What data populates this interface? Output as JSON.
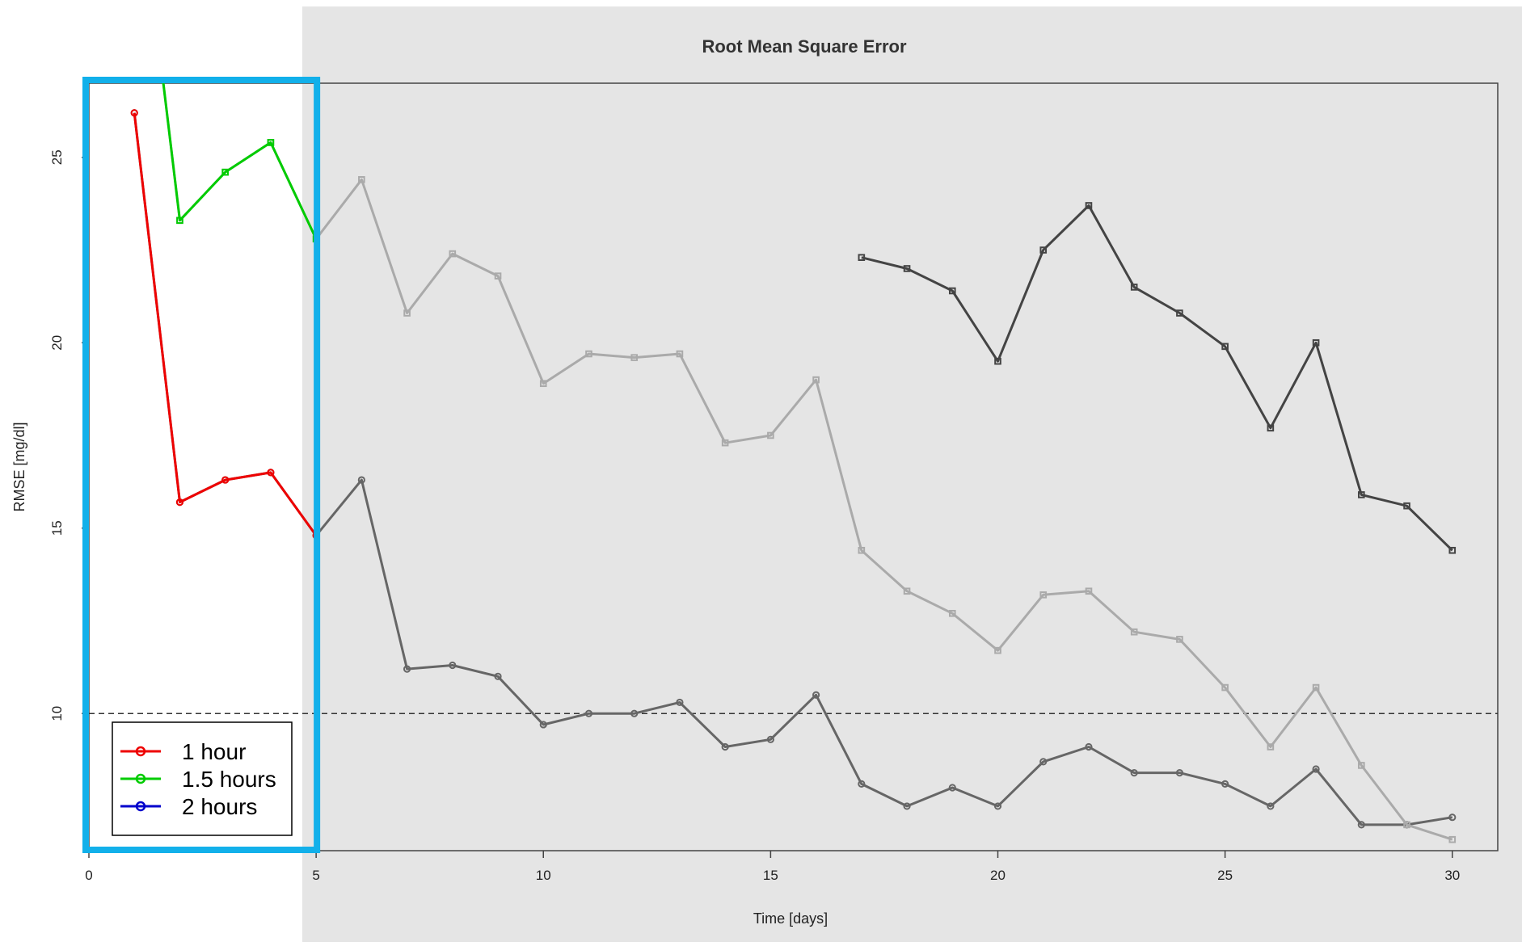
{
  "chart_data": {
    "type": "line",
    "title": "Root Mean Square Error",
    "xlabel": "Time [days]",
    "ylabel": "RMSE [mg/dl]",
    "xlim": [
      0,
      31
    ],
    "ylim": [
      6.3,
      27
    ],
    "xticks": [
      0,
      5,
      10,
      15,
      20,
      25,
      30
    ],
    "yticks": [
      10,
      15,
      20,
      25
    ],
    "reference_line": {
      "y": 10,
      "style": "dashed"
    },
    "series": [
      {
        "name": "1 hour",
        "color": "#666666",
        "highlight_color": "#ee0000",
        "marker": "circle",
        "x": [
          1,
          2,
          3,
          4,
          5,
          6,
          7,
          8,
          9,
          10,
          11,
          12,
          13,
          14,
          15,
          16,
          17,
          18,
          19,
          20,
          21,
          22,
          23,
          24,
          25,
          26,
          27,
          28,
          29,
          30
        ],
        "y": [
          26.2,
          15.7,
          16.3,
          16.5,
          14.8,
          16.3,
          11.2,
          11.3,
          11.0,
          9.7,
          10.0,
          10.0,
          10.3,
          9.1,
          9.3,
          10.5,
          8.1,
          7.5,
          8.0,
          7.5,
          8.7,
          9.1,
          8.4,
          8.4,
          8.1,
          7.5,
          8.5,
          7.0,
          7.0,
          7.2
        ]
      },
      {
        "name": "1.5 hours",
        "color": "#aaaaaa",
        "highlight_color": "#00cc00",
        "marker": "square",
        "x": [
          1,
          2,
          3,
          4,
          5,
          6,
          7,
          8,
          9,
          10,
          11,
          12,
          13,
          14,
          15,
          16,
          17,
          18,
          19,
          20,
          21,
          22,
          23,
          24,
          25,
          26,
          27,
          28,
          29,
          30
        ],
        "y": [
          33.5,
          23.3,
          24.6,
          25.4,
          22.8,
          24.4,
          20.8,
          22.4,
          21.8,
          18.9,
          19.7,
          19.6,
          19.7,
          17.3,
          17.5,
          19.0,
          14.4,
          13.3,
          12.7,
          11.7,
          13.2,
          13.3,
          12.2,
          12.0,
          10.7,
          9.1,
          10.7,
          8.6,
          7.0,
          6.6
        ]
      },
      {
        "name": "2 hours",
        "color": "#444444",
        "highlight_color": "#0000cc",
        "marker": "square",
        "x": [
          17,
          18,
          19,
          20,
          21,
          22,
          23,
          24,
          25,
          26,
          27,
          28,
          29,
          30
        ],
        "y": [
          22.3,
          22.0,
          21.4,
          19.5,
          22.5,
          23.7,
          21.5,
          20.8,
          19.9,
          17.7,
          20.0,
          15.9,
          15.6,
          14.4
        ]
      }
    ],
    "legend": {
      "position": "bottom-left",
      "entries": [
        {
          "label": "1 hour",
          "color": "#ee0000"
        },
        {
          "label": "1.5 hours",
          "color": "#00cc00"
        },
        {
          "label": "2 hours",
          "color": "#0000cc"
        }
      ]
    },
    "overlay": {
      "grey_region_color": "#e5e5e5",
      "highlight_box_color": "#12b0ea",
      "highlight_x_range": [
        0,
        5
      ]
    }
  }
}
